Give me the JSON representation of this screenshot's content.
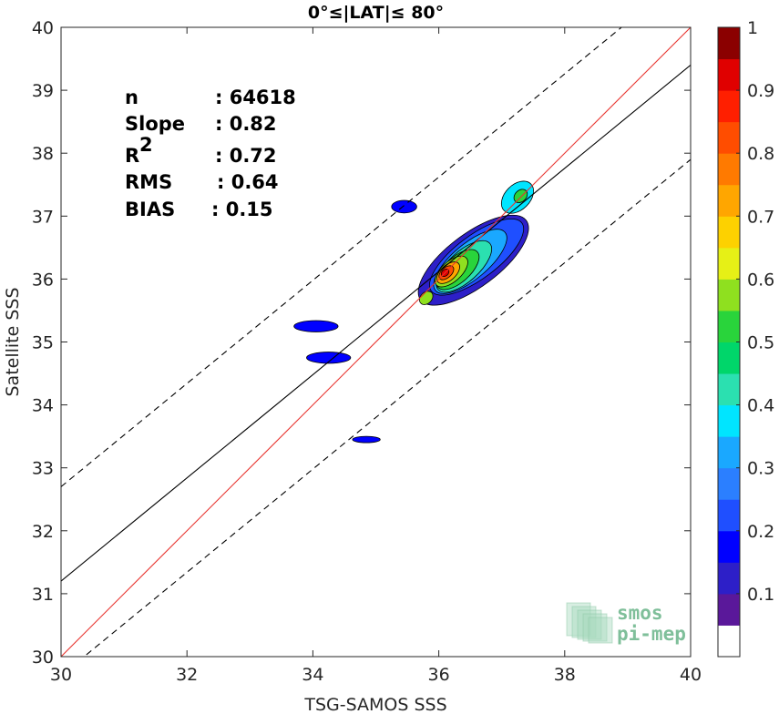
{
  "chart_data": {
    "type": "scatter",
    "title": "0°≤|LAT|≤ 80°",
    "xlabel": "TSG-SAMOS SSS",
    "ylabel": "Satellite SSS",
    "xlim": [
      30,
      40
    ],
    "ylim": [
      30,
      40
    ],
    "xticks": [
      "30",
      "32",
      "34",
      "36",
      "38",
      "40"
    ],
    "yticks": [
      "30",
      "31",
      "32",
      "33",
      "34",
      "35",
      "36",
      "37",
      "38",
      "39",
      "40"
    ],
    "stats": [
      {
        "label": "n",
        "value": ": 64618"
      },
      {
        "label": "Slope",
        "value": ": 0.82"
      },
      {
        "label": "R",
        "sup": "2",
        "value": ": 0.72"
      },
      {
        "label": "RMS",
        "value": ": 0.64"
      },
      {
        "label": "BIAS",
        "value": ": 0.15"
      }
    ],
    "lines": {
      "identity": {
        "slope": 1,
        "intercept": 0,
        "color": "#e8332e"
      },
      "fit": {
        "slope": 0.82,
        "intercept": 6.6,
        "color": "#000000"
      },
      "upper_bound": {
        "slope": 0.82,
        "intercept": 8.1,
        "dash": true
      },
      "lower_bound": {
        "slope": 0.82,
        "intercept": 5.1,
        "dash": true
      }
    },
    "density_blobs": [
      {
        "cx": 36.55,
        "cy": 36.3,
        "rx": 1.05,
        "ry": 0.42,
        "angle_deg": 37,
        "level": 0.12
      },
      {
        "cx": 36.6,
        "cy": 36.35,
        "rx": 0.9,
        "ry": 0.34,
        "angle_deg": 37,
        "level": 0.2
      },
      {
        "cx": 36.5,
        "cy": 36.28,
        "rx": 0.72,
        "ry": 0.28,
        "angle_deg": 40,
        "level": 0.3
      },
      {
        "cx": 36.4,
        "cy": 36.2,
        "rx": 0.55,
        "ry": 0.24,
        "angle_deg": 42,
        "level": 0.4
      },
      {
        "cx": 36.3,
        "cy": 36.15,
        "rx": 0.42,
        "ry": 0.2,
        "angle_deg": 42,
        "level": 0.5
      },
      {
        "cx": 36.2,
        "cy": 36.12,
        "rx": 0.32,
        "ry": 0.16,
        "angle_deg": 42,
        "level": 0.6
      },
      {
        "cx": 36.15,
        "cy": 36.1,
        "rx": 0.22,
        "ry": 0.12,
        "angle_deg": 42,
        "level": 0.72
      },
      {
        "cx": 36.12,
        "cy": 36.1,
        "rx": 0.14,
        "ry": 0.08,
        "angle_deg": 42,
        "level": 0.85
      },
      {
        "cx": 36.1,
        "cy": 36.1,
        "rx": 0.07,
        "ry": 0.05,
        "angle_deg": 42,
        "level": 0.95
      },
      {
        "cx": 37.25,
        "cy": 37.3,
        "rx": 0.3,
        "ry": 0.2,
        "angle_deg": 45,
        "level": 0.35
      },
      {
        "cx": 37.3,
        "cy": 37.32,
        "rx": 0.12,
        "ry": 0.09,
        "angle_deg": 45,
        "level": 0.5
      },
      {
        "cx": 35.8,
        "cy": 35.7,
        "rx": 0.12,
        "ry": 0.09,
        "angle_deg": 45,
        "level": 0.6
      },
      {
        "cx": 35.45,
        "cy": 37.15,
        "rx": 0.2,
        "ry": 0.1,
        "angle_deg": 0,
        "level": 0.15
      },
      {
        "cx": 34.05,
        "cy": 35.25,
        "rx": 0.35,
        "ry": 0.09,
        "angle_deg": 0,
        "level": 0.15
      },
      {
        "cx": 34.25,
        "cy": 34.75,
        "rx": 0.35,
        "ry": 0.09,
        "angle_deg": 0,
        "level": 0.15
      },
      {
        "cx": 34.85,
        "cy": 33.45,
        "rx": 0.22,
        "ry": 0.05,
        "angle_deg": 0,
        "level": 0.15
      }
    ],
    "colorbar": {
      "ticks": [
        "0.1",
        "0.2",
        "0.3",
        "0.4",
        "0.5",
        "0.6",
        "0.7",
        "0.8",
        "0.9",
        "1"
      ],
      "colors": [
        "#ffffff",
        "#5a189a",
        "#2d1fc8",
        "#0000ff",
        "#1f4fff",
        "#2b7fff",
        "#1aa8ff",
        "#00e5ff",
        "#2be0b0",
        "#00d66a",
        "#29d43b",
        "#8fe01f",
        "#e6f016",
        "#fdd100",
        "#ffa600",
        "#ff7a00",
        "#ff4d00",
        "#ff1f00",
        "#e00000",
        "#8b0000"
      ]
    }
  },
  "logo": {
    "line1": "smos",
    "line2": "pi-mep"
  }
}
